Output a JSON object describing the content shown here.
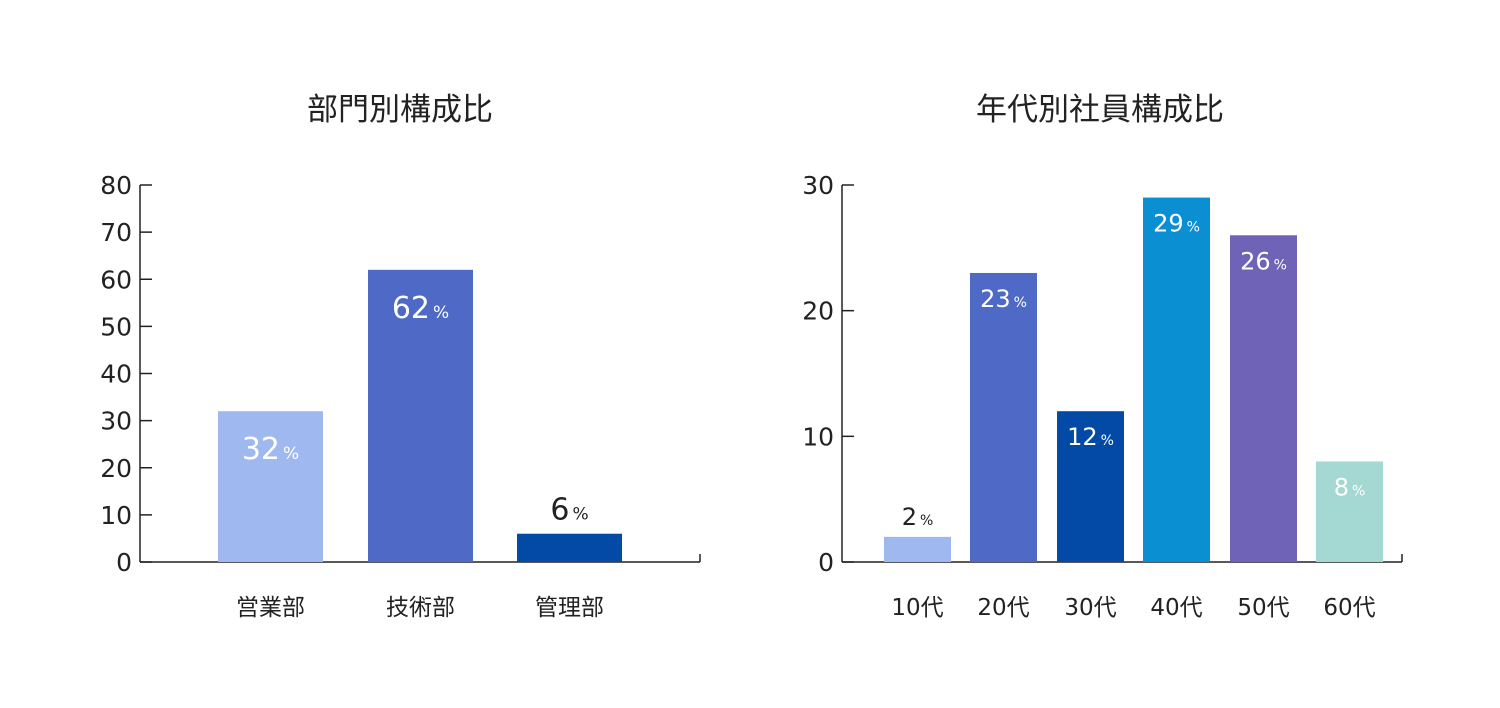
{
  "chart_data": [
    {
      "type": "bar",
      "title": "部門別構成比",
      "categories": [
        "営業部",
        "技術部",
        "管理部"
      ],
      "values": [
        32,
        62,
        6
      ],
      "value_suffix": "%",
      "colors": [
        "#a0b8f0",
        "#4f69c6",
        "#034aa6"
      ],
      "label_inside": [
        true,
        true,
        false
      ],
      "ylim": [
        0,
        80
      ],
      "yticks": [
        0,
        10,
        20,
        30,
        40,
        50,
        60,
        70,
        80
      ],
      "xlabel": "",
      "ylabel": ""
    },
    {
      "type": "bar",
      "title": "年代別社員構成比",
      "categories": [
        "10代",
        "20代",
        "30代",
        "40代",
        "50代",
        "60代"
      ],
      "values": [
        2,
        23,
        12,
        29,
        26,
        8
      ],
      "value_suffix": "%",
      "colors": [
        "#a0b8f0",
        "#4f69c6",
        "#034aa6",
        "#0a8fd2",
        "#6f63b8",
        "#a3d8d3"
      ],
      "label_inside": [
        false,
        true,
        true,
        true,
        true,
        true
      ],
      "ylim": [
        0,
        30
      ],
      "yticks": [
        0,
        10,
        20,
        30
      ],
      "xlabel": "",
      "ylabel": ""
    }
  ]
}
